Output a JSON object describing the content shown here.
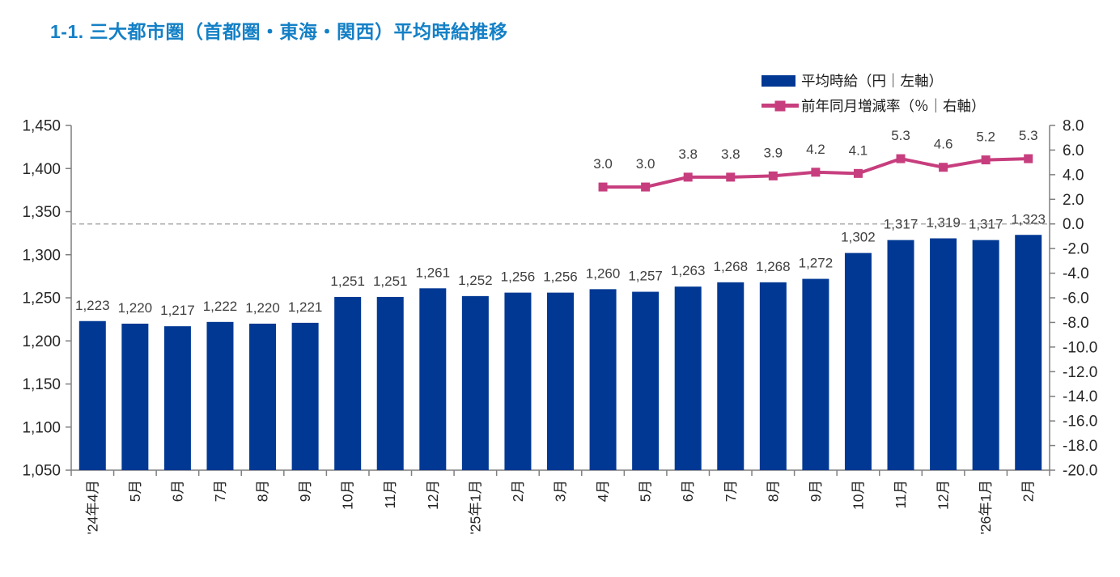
{
  "title": "1-1. 三大都市圏（首都圏・東海・関西）平均時給推移",
  "colors": {
    "title": "#1480C6",
    "bar": "#003893",
    "line": "#C73E7E",
    "axis": "#7F7F7F",
    "tick_label": "#262626",
    "data_label": "#404040",
    "zero_line": "#ABABAB"
  },
  "chart_data": {
    "type": "bar+line",
    "title": "1-1. 三大都市圏（首都圏・東海・関西）平均時給推移",
    "categories": [
      "'24年4月",
      "5月",
      "6月",
      "7月",
      "8月",
      "9月",
      "10月",
      "11月",
      "12月",
      "'25年1月",
      "2月",
      "3月",
      "4月",
      "5月",
      "6月",
      "7月",
      "8月",
      "9月",
      "10月",
      "11月",
      "12月",
      "'26年1月",
      "2月"
    ],
    "series": [
      {
        "name": "平均時給（円｜左軸）",
        "type": "bar",
        "axis": "left",
        "color": "#003893",
        "values": [
          1223,
          1220,
          1217,
          1222,
          1220,
          1221,
          1251,
          1251,
          1261,
          1252,
          1256,
          1256,
          1260,
          1257,
          1263,
          1268,
          1268,
          1272,
          1302,
          1317,
          1319,
          1317,
          1323
        ]
      },
      {
        "name": "前年同月増減率（％｜右軸）",
        "type": "line",
        "axis": "right",
        "color": "#C73E7E",
        "values": [
          null,
          null,
          null,
          null,
          null,
          null,
          null,
          null,
          null,
          null,
          null,
          null,
          3.0,
          3.0,
          3.8,
          3.8,
          3.9,
          4.2,
          4.1,
          5.3,
          4.6,
          5.2,
          5.3
        ]
      }
    ],
    "left_axis": {
      "min": 1050,
      "max": 1450,
      "step": 50
    },
    "right_axis": {
      "min": -20.0,
      "max": 8.0,
      "step": 2.0
    },
    "zero_gridline": {
      "axis": "right",
      "value": 0.0,
      "style": "dashed"
    },
    "legend_position": "top-right",
    "grid": "off"
  }
}
